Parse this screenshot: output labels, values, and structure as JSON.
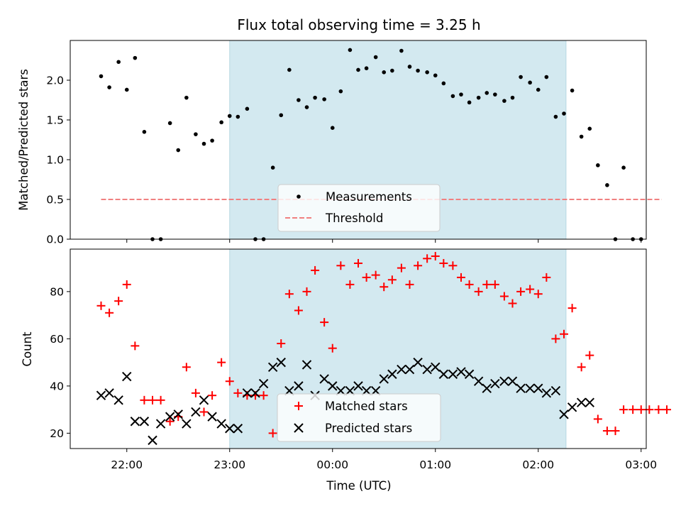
{
  "chart_data": {
    "type": "scatter",
    "title": "Flux total observing time = 3.25 h",
    "xlabel": "Time (UTC)",
    "x_ticks": [
      "22:00",
      "23:00",
      "00:00",
      "01:00",
      "02:00",
      "03:00"
    ],
    "x_range_hours": [
      21.45,
      27.05
    ],
    "shaded_interval_hours": [
      23.0,
      26.27
    ],
    "shade_color": "#d3e9f0",
    "panels": [
      {
        "ylabel": "Matched/Predicted stars",
        "ylim": [
          0,
          2.5
        ],
        "y_ticks": [
          "0.0",
          "0.5",
          "1.0",
          "1.5",
          "2.0"
        ],
        "y_tick_values": [
          0,
          0.5,
          1.0,
          1.5,
          2.0
        ],
        "legend": [
          "Measurements",
          "Threshold"
        ],
        "threshold": {
          "value": 0.5,
          "x": [
            21.75,
            27.2
          ],
          "color": "#f08080"
        },
        "series": [
          {
            "name": "Measurements",
            "marker": "dot",
            "color": "#000000",
            "x": [
              21.75,
              21.83,
              21.92,
              22.0,
              22.08,
              22.17,
              22.25,
              22.33,
              22.42,
              22.5,
              22.58,
              22.67,
              22.75,
              22.83,
              22.92,
              23.0,
              23.08,
              23.17,
              23.25,
              23.33,
              23.42,
              23.5,
              23.58,
              23.67,
              23.75,
              23.83,
              23.92,
              24.0,
              24.08,
              24.17,
              24.25,
              24.33,
              24.42,
              24.5,
              24.58,
              24.67,
              24.75,
              24.83,
              24.92,
              25.0,
              25.08,
              25.17,
              25.25,
              25.33,
              25.42,
              25.5,
              25.58,
              25.67,
              25.75,
              25.83,
              25.92,
              26.0,
              26.08,
              26.17,
              26.25,
              26.33,
              26.42,
              26.5,
              26.58,
              26.67,
              26.75,
              26.83,
              26.92,
              27.0
            ],
            "y": [
              2.05,
              1.91,
              2.23,
              1.88,
              2.28,
              1.35,
              0.0,
              0.0,
              1.46,
              1.12,
              1.78,
              1.32,
              1.2,
              1.24,
              1.47,
              1.55,
              1.54,
              1.64,
              0.0,
              0.0,
              0.9,
              1.56,
              2.13,
              1.75,
              1.66,
              1.78,
              1.76,
              1.4,
              1.86,
              2.38,
              2.13,
              2.15,
              2.29,
              2.1,
              2.12,
              2.37,
              2.17,
              2.12,
              2.1,
              2.06,
              1.96,
              1.8,
              1.82,
              1.72,
              1.78,
              1.84,
              1.82,
              1.74,
              1.78,
              2.04,
              1.97,
              1.88,
              2.04,
              1.54,
              1.58,
              1.87,
              1.29,
              1.39,
              0.93,
              0.68,
              0.0,
              0.9,
              0.0,
              0.0
            ]
          }
        ]
      },
      {
        "ylabel": "Count",
        "ylim": [
          13.5,
          98
        ],
        "y_ticks": [
          "20",
          "40",
          "60",
          "80"
        ],
        "y_tick_values": [
          20,
          40,
          60,
          80
        ],
        "legend": [
          "Matched stars",
          "Predicted stars"
        ],
        "series": [
          {
            "name": "Matched stars",
            "marker": "plus",
            "color": "#ff0000",
            "x": [
              21.75,
              21.83,
              21.92,
              22.0,
              22.08,
              22.17,
              22.25,
              22.33,
              22.42,
              22.5,
              22.58,
              22.67,
              22.75,
              22.83,
              22.92,
              23.0,
              23.08,
              23.17,
              23.25,
              23.33,
              23.42,
              23.5,
              23.58,
              23.67,
              23.75,
              23.83,
              23.92,
              24.0,
              24.08,
              24.17,
              24.25,
              24.33,
              24.42,
              24.5,
              24.58,
              24.67,
              24.75,
              24.83,
              24.92,
              25.0,
              25.08,
              25.17,
              25.25,
              25.33,
              25.42,
              25.5,
              25.58,
              25.67,
              25.75,
              25.83,
              25.92,
              26.0,
              26.08,
              26.17,
              26.25,
              26.33,
              26.42,
              26.5,
              26.58,
              26.67,
              26.75,
              26.83,
              26.92,
              27.0,
              27.08,
              27.17,
              27.25
            ],
            "y": [
              74,
              71,
              76,
              83,
              57,
              34,
              34,
              34,
              25,
              27,
              48,
              37,
              29,
              36,
              50,
              42,
              37,
              36,
              36,
              36,
              20,
              58,
              79,
              72,
              80,
              89,
              67,
              56,
              91,
              83,
              92,
              86,
              87,
              82,
              85,
              90,
              83,
              91,
              94,
              95,
              92,
              91,
              86,
              83,
              80,
              83,
              83,
              78,
              75,
              80,
              81,
              79,
              86,
              60,
              62,
              73,
              48,
              53,
              26,
              21,
              21,
              30,
              30,
              30,
              30,
              30,
              30
            ]
          },
          {
            "name": "Predicted stars",
            "marker": "x",
            "color": "#000000",
            "x": [
              21.75,
              21.83,
              21.92,
              22.0,
              22.08,
              22.17,
              22.25,
              22.33,
              22.42,
              22.5,
              22.58,
              22.67,
              22.75,
              22.83,
              22.92,
              23.0,
              23.08,
              23.17,
              23.25,
              23.33,
              23.42,
              23.5,
              23.58,
              23.67,
              23.75,
              23.83,
              23.92,
              24.0,
              24.08,
              24.17,
              24.25,
              24.33,
              24.42,
              24.5,
              24.58,
              24.67,
              24.75,
              24.83,
              24.92,
              25.0,
              25.08,
              25.17,
              25.25,
              25.33,
              25.42,
              25.5,
              25.58,
              25.67,
              25.75,
              25.83,
              25.92,
              26.0,
              26.08,
              26.17,
              26.25,
              26.33,
              26.42,
              26.5
            ],
            "y": [
              36,
              37,
              34,
              44,
              25,
              25,
              17,
              24,
              27,
              28,
              24,
              29,
              34,
              27,
              24,
              22,
              22,
              37,
              37,
              41,
              48,
              50,
              38,
              40,
              49,
              36,
              43,
              40,
              38,
              38,
              40,
              38,
              38,
              43,
              45,
              47,
              47,
              50,
              47,
              48,
              45,
              45,
              46,
              45,
              42,
              39,
              41,
              42,
              42,
              39,
              39,
              39,
              37,
              38,
              28,
              31,
              33,
              33
            ]
          }
        ]
      }
    ]
  }
}
